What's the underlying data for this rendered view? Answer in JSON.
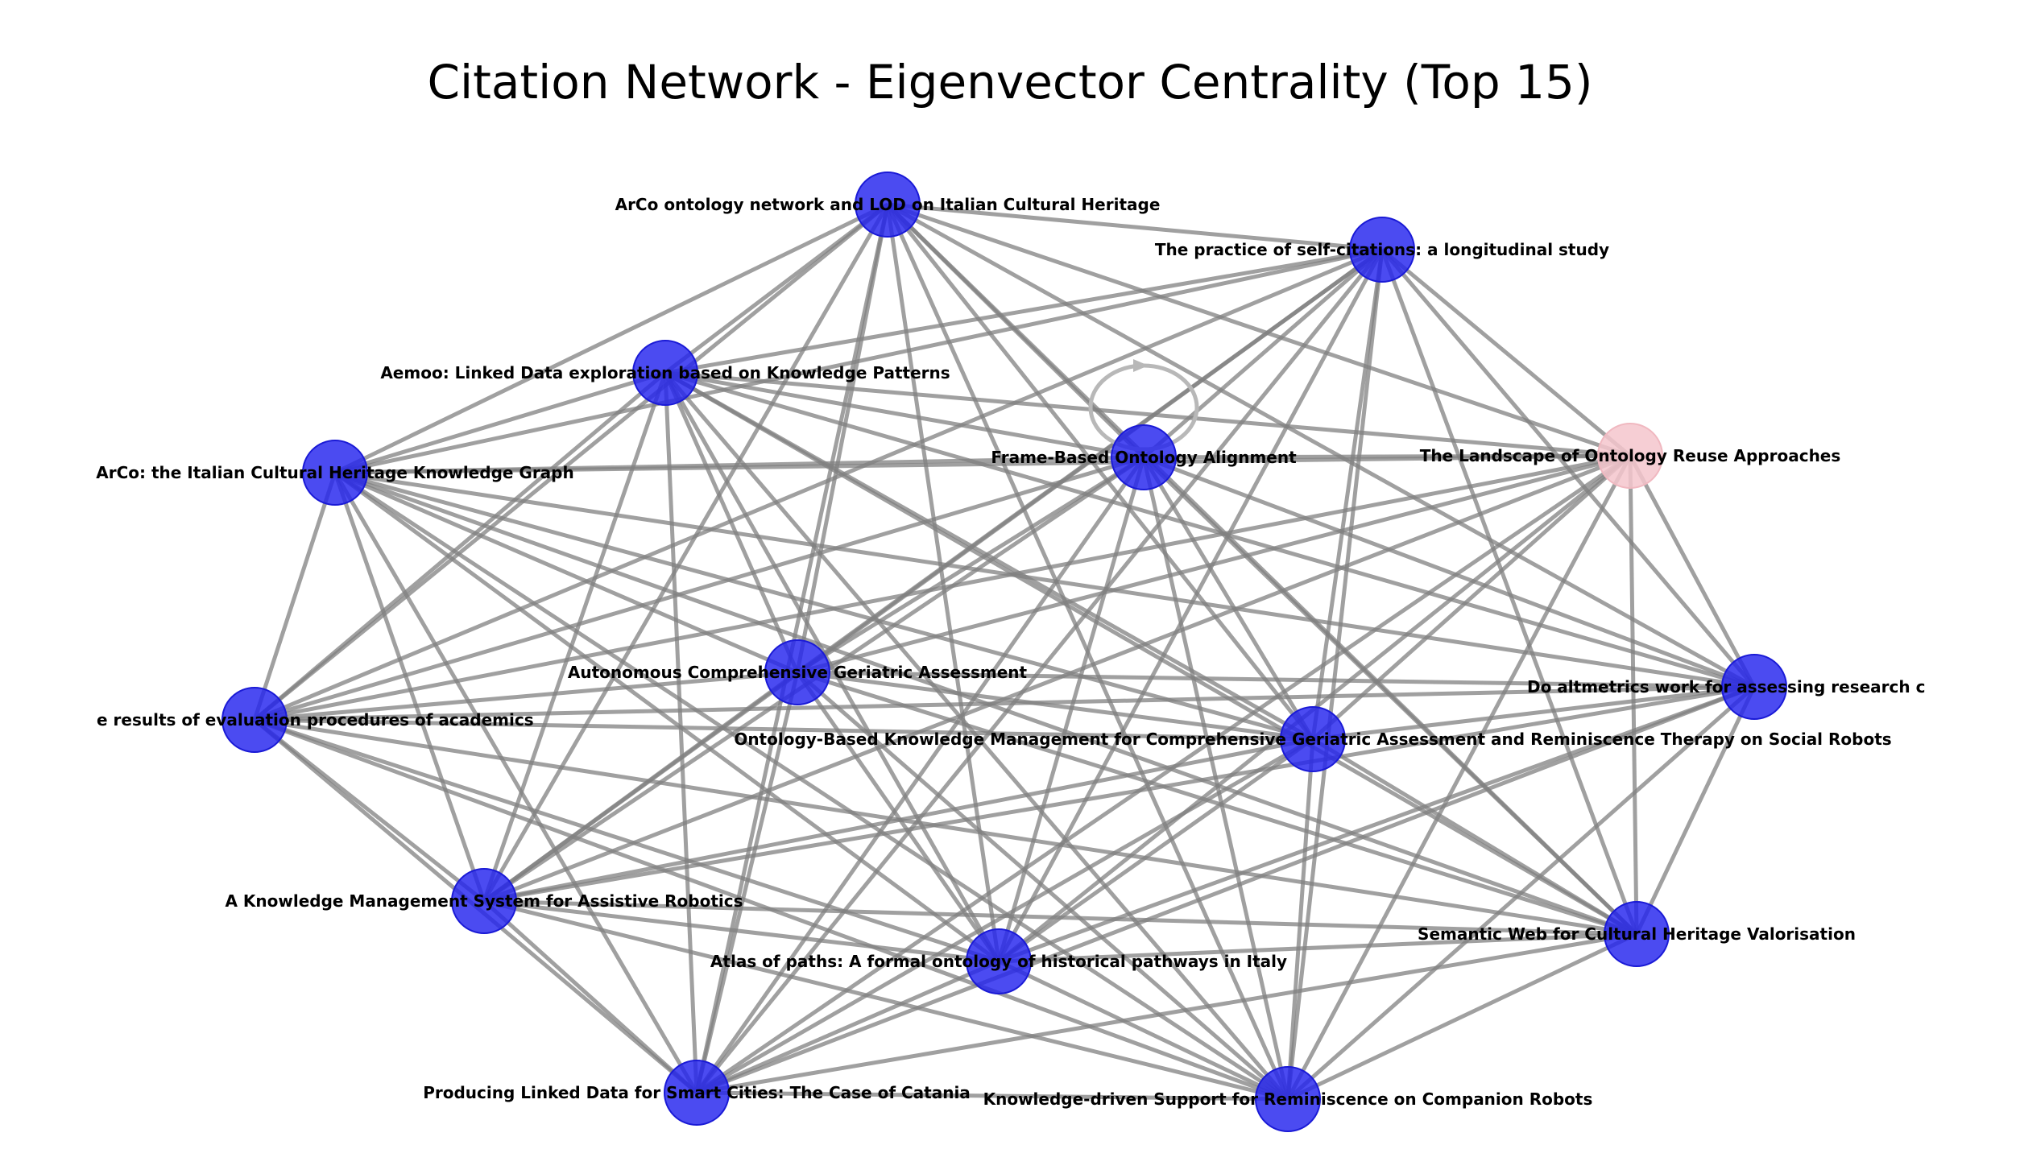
{
  "title": "Citation Network - Eigenvector Centrality (Top 15)",
  "colors": {
    "node_default": "#2323ee",
    "node_highlight": "#f4c6cc",
    "edge": "#808080",
    "background": "#ffffff"
  },
  "nodes": [
    {
      "id": "arco_lod",
      "label": "ArCo ontology network and LOD on Italian Cultural Heritage",
      "highlight": false
    },
    {
      "id": "self_citations",
      "label": "The practice of self-citations: a longitudinal study",
      "highlight": false
    },
    {
      "id": "aemoo",
      "label": "Aemoo: Linked Data exploration based on Knowledge Patterns",
      "highlight": false
    },
    {
      "id": "frame_alignment",
      "label": "Frame-Based Ontology Alignment",
      "highlight": false
    },
    {
      "id": "ontology_reuse",
      "label": "The Landscape of Ontology Reuse Approaches",
      "highlight": true
    },
    {
      "id": "arco_kg",
      "label": "ArCo: the Italian Cultural Heritage Knowledge Graph",
      "highlight": false
    },
    {
      "id": "geriatric",
      "label": "Autonomous Comprehensive Geriatric Assessment",
      "highlight": false
    },
    {
      "id": "altmetrics",
      "label": "Do altmetrics work for assessing research c",
      "highlight": false
    },
    {
      "id": "evaluation",
      "label": "e results of evaluation procedures of academics",
      "highlight": false
    },
    {
      "id": "ontology_km",
      "label": "Ontology-Based Knowledge Management for Comprehensive Geriatric Assessment and Reminiscence Therapy on Social Robots",
      "highlight": false
    },
    {
      "id": "km_robotics",
      "label": "A Knowledge Management System for Assistive Robotics",
      "highlight": false
    },
    {
      "id": "semantic_web",
      "label": "Semantic Web for Cultural Heritage Valorisation",
      "highlight": false
    },
    {
      "id": "atlas_paths",
      "label": "Atlas of paths: A formal ontology of historical pathways in Italy",
      "highlight": false
    },
    {
      "id": "smart_cities",
      "label": "Producing Linked Data for Smart Cities: The Case of Catania",
      "highlight": false
    },
    {
      "id": "reminiscence",
      "label": "Knowledge-driven Support for Reminiscence on Companion Robots",
      "highlight": false
    }
  ],
  "self_loops": [
    "frame_alignment"
  ],
  "edges": [
    [
      "arco_lod",
      "self_citations"
    ],
    [
      "arco_lod",
      "aemoo"
    ],
    [
      "arco_lod",
      "frame_alignment"
    ],
    [
      "arco_lod",
      "ontology_reuse"
    ],
    [
      "arco_lod",
      "arco_kg"
    ],
    [
      "arco_lod",
      "geriatric"
    ],
    [
      "arco_lod",
      "evaluation"
    ],
    [
      "arco_lod",
      "ontology_km"
    ],
    [
      "arco_lod",
      "km_robotics"
    ],
    [
      "arco_lod",
      "atlas_paths"
    ],
    [
      "arco_lod",
      "smart_cities"
    ],
    [
      "arco_lod",
      "reminiscence"
    ],
    [
      "arco_lod",
      "semantic_web"
    ],
    [
      "arco_lod",
      "altmetrics"
    ],
    [
      "self_citations",
      "aemoo"
    ],
    [
      "self_citations",
      "frame_alignment"
    ],
    [
      "self_citations",
      "arco_kg"
    ],
    [
      "self_citations",
      "geriatric"
    ],
    [
      "self_citations",
      "evaluation"
    ],
    [
      "self_citations",
      "ontology_km"
    ],
    [
      "self_citations",
      "km_robotics"
    ],
    [
      "self_citations",
      "atlas_paths"
    ],
    [
      "self_citations",
      "smart_cities"
    ],
    [
      "self_citations",
      "reminiscence"
    ],
    [
      "self_citations",
      "semantic_web"
    ],
    [
      "self_citations",
      "altmetrics"
    ],
    [
      "self_citations",
      "ontology_reuse"
    ],
    [
      "aemoo",
      "frame_alignment"
    ],
    [
      "aemoo",
      "ontology_reuse"
    ],
    [
      "aemoo",
      "arco_kg"
    ],
    [
      "aemoo",
      "geriatric"
    ],
    [
      "aemoo",
      "evaluation"
    ],
    [
      "aemoo",
      "ontology_km"
    ],
    [
      "aemoo",
      "km_robotics"
    ],
    [
      "aemoo",
      "atlas_paths"
    ],
    [
      "aemoo",
      "smart_cities"
    ],
    [
      "aemoo",
      "reminiscence"
    ],
    [
      "aemoo",
      "semantic_web"
    ],
    [
      "aemoo",
      "altmetrics"
    ],
    [
      "frame_alignment",
      "ontology_reuse"
    ],
    [
      "frame_alignment",
      "arco_kg"
    ],
    [
      "frame_alignment",
      "geriatric"
    ],
    [
      "frame_alignment",
      "evaluation"
    ],
    [
      "frame_alignment",
      "ontology_km"
    ],
    [
      "frame_alignment",
      "km_robotics"
    ],
    [
      "frame_alignment",
      "atlas_paths"
    ],
    [
      "frame_alignment",
      "smart_cities"
    ],
    [
      "frame_alignment",
      "reminiscence"
    ],
    [
      "frame_alignment",
      "semantic_web"
    ],
    [
      "frame_alignment",
      "altmetrics"
    ],
    [
      "ontology_reuse",
      "arco_kg"
    ],
    [
      "ontology_reuse",
      "geriatric"
    ],
    [
      "ontology_reuse",
      "evaluation"
    ],
    [
      "ontology_reuse",
      "ontology_km"
    ],
    [
      "ontology_reuse",
      "km_robotics"
    ],
    [
      "ontology_reuse",
      "atlas_paths"
    ],
    [
      "ontology_reuse",
      "smart_cities"
    ],
    [
      "ontology_reuse",
      "reminiscence"
    ],
    [
      "ontology_reuse",
      "semantic_web"
    ],
    [
      "ontology_reuse",
      "altmetrics"
    ],
    [
      "arco_kg",
      "geriatric"
    ],
    [
      "arco_kg",
      "evaluation"
    ],
    [
      "arco_kg",
      "ontology_km"
    ],
    [
      "arco_kg",
      "km_robotics"
    ],
    [
      "arco_kg",
      "atlas_paths"
    ],
    [
      "arco_kg",
      "smart_cities"
    ],
    [
      "arco_kg",
      "reminiscence"
    ],
    [
      "arco_kg",
      "semantic_web"
    ],
    [
      "arco_kg",
      "altmetrics"
    ],
    [
      "geriatric",
      "evaluation"
    ],
    [
      "geriatric",
      "ontology_km"
    ],
    [
      "geriatric",
      "km_robotics"
    ],
    [
      "geriatric",
      "atlas_paths"
    ],
    [
      "geriatric",
      "smart_cities"
    ],
    [
      "geriatric",
      "reminiscence"
    ],
    [
      "geriatric",
      "semantic_web"
    ],
    [
      "geriatric",
      "altmetrics"
    ],
    [
      "altmetrics",
      "evaluation"
    ],
    [
      "altmetrics",
      "ontology_km"
    ],
    [
      "altmetrics",
      "km_robotics"
    ],
    [
      "altmetrics",
      "atlas_paths"
    ],
    [
      "altmetrics",
      "smart_cities"
    ],
    [
      "altmetrics",
      "reminiscence"
    ],
    [
      "altmetrics",
      "semantic_web"
    ],
    [
      "evaluation",
      "ontology_km"
    ],
    [
      "evaluation",
      "km_robotics"
    ],
    [
      "evaluation",
      "atlas_paths"
    ],
    [
      "evaluation",
      "smart_cities"
    ],
    [
      "evaluation",
      "reminiscence"
    ],
    [
      "evaluation",
      "semantic_web"
    ],
    [
      "ontology_km",
      "km_robotics"
    ],
    [
      "ontology_km",
      "atlas_paths"
    ],
    [
      "ontology_km",
      "smart_cities"
    ],
    [
      "ontology_km",
      "reminiscence"
    ],
    [
      "ontology_km",
      "semantic_web"
    ],
    [
      "km_robotics",
      "atlas_paths"
    ],
    [
      "km_robotics",
      "smart_cities"
    ],
    [
      "km_robotics",
      "reminiscence"
    ],
    [
      "km_robotics",
      "semantic_web"
    ],
    [
      "semantic_web",
      "atlas_paths"
    ],
    [
      "semantic_web",
      "smart_cities"
    ],
    [
      "semantic_web",
      "reminiscence"
    ],
    [
      "atlas_paths",
      "smart_cities"
    ],
    [
      "atlas_paths",
      "reminiscence"
    ],
    [
      "smart_cities",
      "reminiscence"
    ]
  ]
}
